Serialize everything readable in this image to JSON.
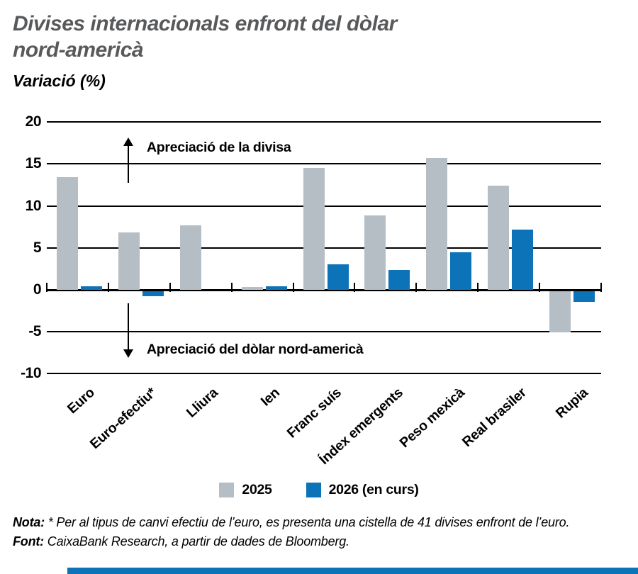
{
  "title": "Divises internacionals enfront del dòlar\nnord-americà",
  "subtitle": "Variació (%)",
  "annotations": {
    "up": "Apreciació de la divisa",
    "down": "Apreciació del dòlar nord-americà"
  },
  "legend": [
    {
      "label": "2025",
      "color": "#b5bec4"
    },
    {
      "label": "2026 (en curs)",
      "color": "#0c73b8"
    }
  ],
  "notes": {
    "nota_label": "Nota:",
    "nota_text": " * Per al tipus de canvi efectiu de l’euro, es presenta una cistella de 41 divises enfront de l’euro.",
    "font_label": "Font:",
    "font_text": " CaixaBank Research, a partir de dades de Bloomberg."
  },
  "colors": {
    "title_gray": "#58595b",
    "bar_gray": "#b5bec4",
    "bar_blue": "#0c73b8",
    "axis_black": "#000000",
    "accent_bar_blue": "#0c73b8"
  },
  "chart_data": {
    "type": "bar",
    "categories": [
      "Euro",
      "Euro-efectiu*",
      "Lliura",
      "Ien",
      "Franc suís",
      "Índex emergents",
      "Peso mexicà",
      "Real brasiler",
      "Rupia"
    ],
    "series": [
      {
        "name": "2025",
        "color": "#b5bec4",
        "values": [
          13.4,
          6.8,
          7.7,
          0.3,
          14.5,
          8.9,
          15.7,
          12.4,
          -4.9
        ]
      },
      {
        "name": "2026 (en curs)",
        "color": "#0c73b8",
        "values": [
          0.4,
          -0.6,
          0,
          0.4,
          3.0,
          2.4,
          4.5,
          7.2,
          -1.3
        ]
      }
    ],
    "title": "Divises internacionals enfront del dòlar nord-americà",
    "ylabel": "Variació (%)",
    "xlabel": "",
    "yticks": [
      20,
      15,
      10,
      5,
      0,
      -5,
      -10
    ],
    "ylim": [
      -10,
      20
    ],
    "grid": true,
    "legend_position": "bottom"
  }
}
